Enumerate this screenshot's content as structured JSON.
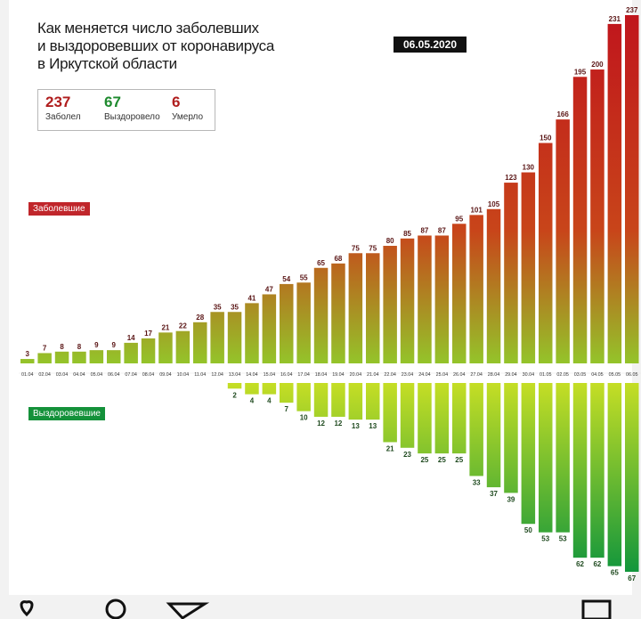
{
  "title_lines": [
    "Как меняется число заболевших",
    "и выздоровевших от коронавируса",
    "в Иркутской области"
  ],
  "date_badge": "06.05.2020",
  "stats": {
    "infected": {
      "value": "237",
      "label": "Заболел",
      "color": "#b01e1e"
    },
    "recovered": {
      "value": "67",
      "label": "Выздоровело",
      "color": "#1e8a2e"
    },
    "died": {
      "value": "6",
      "label": "Умерло",
      "color": "#b01e1e"
    }
  },
  "colors": {
    "infected_top": "#c0151c",
    "infected_bottom": "#94c42a",
    "recovered_top": "#c5de25",
    "recovered_bottom": "#12963c",
    "infected_tag": "#c0262b",
    "recovered_tag": "#14913a",
    "label_text": "#5a1515",
    "recovered_label_text": "#1f4a1f"
  },
  "chart_data": {
    "type": "bar",
    "categories": [
      "01.04",
      "02.04",
      "03.04",
      "04.04",
      "05.04",
      "06.04",
      "07.04",
      "08.04",
      "09.04",
      "10.04",
      "11.04",
      "12.04",
      "13.04",
      "14.04",
      "15.04",
      "16.04",
      "17.04",
      "18.04",
      "19.04",
      "20.04",
      "21.04",
      "22.04",
      "23.04",
      "24.04",
      "25.04",
      "26.04",
      "27.04",
      "28.04",
      "29.04",
      "30.04",
      "01.05",
      "02.05",
      "03.05",
      "04.05",
      "05.05",
      "06.05"
    ],
    "series": [
      {
        "name": "Заболевшие",
        "direction": "up",
        "values": [
          3,
          7,
          8,
          8,
          9,
          9,
          14,
          17,
          21,
          22,
          28,
          35,
          35,
          41,
          47,
          54,
          55,
          65,
          68,
          75,
          75,
          80,
          85,
          87,
          87,
          95,
          101,
          105,
          123,
          130,
          150,
          166,
          195,
          200,
          231,
          237
        ]
      },
      {
        "name": "Выздоровевшие",
        "direction": "down",
        "values": [
          null,
          null,
          null,
          null,
          null,
          null,
          null,
          null,
          null,
          null,
          null,
          null,
          2,
          4,
          4,
          7,
          10,
          12,
          12,
          13,
          13,
          21,
          23,
          25,
          25,
          25,
          33,
          37,
          39,
          50,
          53,
          53,
          62,
          62,
          65,
          67
        ]
      }
    ],
    "xlabel": "",
    "ylabel": "",
    "grid": false,
    "legend": "left"
  },
  "bottom_icons": [
    "heart-icon",
    "comment-icon",
    "share-icon",
    "bookmark-icon"
  ]
}
